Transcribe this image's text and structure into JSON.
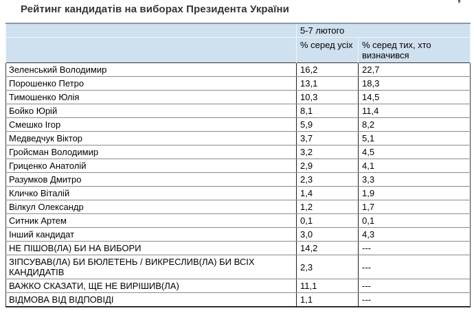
{
  "page": {
    "title": "Рейтинг кандидатів на виборах Президента України"
  },
  "colors": {
    "header_bg": "#cfe0ef",
    "flag_blue": "#2b5fb8",
    "flag_yellow": "#e8c82a"
  },
  "chart_data": {
    "type": "table",
    "title": "Рейтинг кандидатів на виборах Президента України",
    "survey_period": "5-7 лютого",
    "columns": [
      "% серед усіх",
      "% серед тих, хто визначився"
    ],
    "rows": [
      {
        "label": "Зеленський Володимир",
        "pct_all": "16,2",
        "pct_decided": "22,7"
      },
      {
        "label": "Порошенко Петро",
        "pct_all": "13,1",
        "pct_decided": "18,3"
      },
      {
        "label": "Тимошенко Юлія",
        "pct_all": "10,3",
        "pct_decided": "14,5"
      },
      {
        "label": "Бойко Юрій",
        "pct_all": "8,1",
        "pct_decided": "11,4"
      },
      {
        "label": "Смешко Ігор",
        "pct_all": "5,9",
        "pct_decided": "8,2"
      },
      {
        "label": "Медведчук Віктор",
        "pct_all": "3,7",
        "pct_decided": "5,1"
      },
      {
        "label": "Гройсман Володимир",
        "pct_all": "3,2",
        "pct_decided": "4,5"
      },
      {
        "label": "Гриценко Анатолій",
        "pct_all": "2,9",
        "pct_decided": "4,1"
      },
      {
        "label": "Разумков Дмитро",
        "pct_all": "2,3",
        "pct_decided": "3,3"
      },
      {
        "label": "Кличко Віталій",
        "pct_all": "1,4",
        "pct_decided": "1,9"
      },
      {
        "label": "Вілкул Олександр",
        "pct_all": "1,2",
        "pct_decided": "1,7"
      },
      {
        "label": "Ситник Артем",
        "pct_all": "0,1",
        "pct_decided": "0,1"
      },
      {
        "label": "Інший кандидат",
        "pct_all": "3,0",
        "pct_decided": "4,3"
      },
      {
        "label": "НЕ ПІШОВ(ЛА) БИ НА ВИБОРИ",
        "pct_all": "14,2",
        "pct_decided": "---"
      },
      {
        "label": "ЗІПСУВАВ(ЛА) БИ БЮЛЕТЕНЬ / ВИКРЕСЛИВ(ЛА) БИ ВСІХ КАНДИДАТІВ",
        "pct_all": "2,3",
        "pct_decided": "---"
      },
      {
        "label": "ВАЖКО СКАЗАТИ, ЩЕ НЕ ВИРІШИВ(ЛА)",
        "pct_all": "11,1",
        "pct_decided": "---"
      },
      {
        "label": "ВІДМОВА ВІД ВІДПОВІДІ",
        "pct_all": "1,1",
        "pct_decided": "---"
      }
    ]
  }
}
